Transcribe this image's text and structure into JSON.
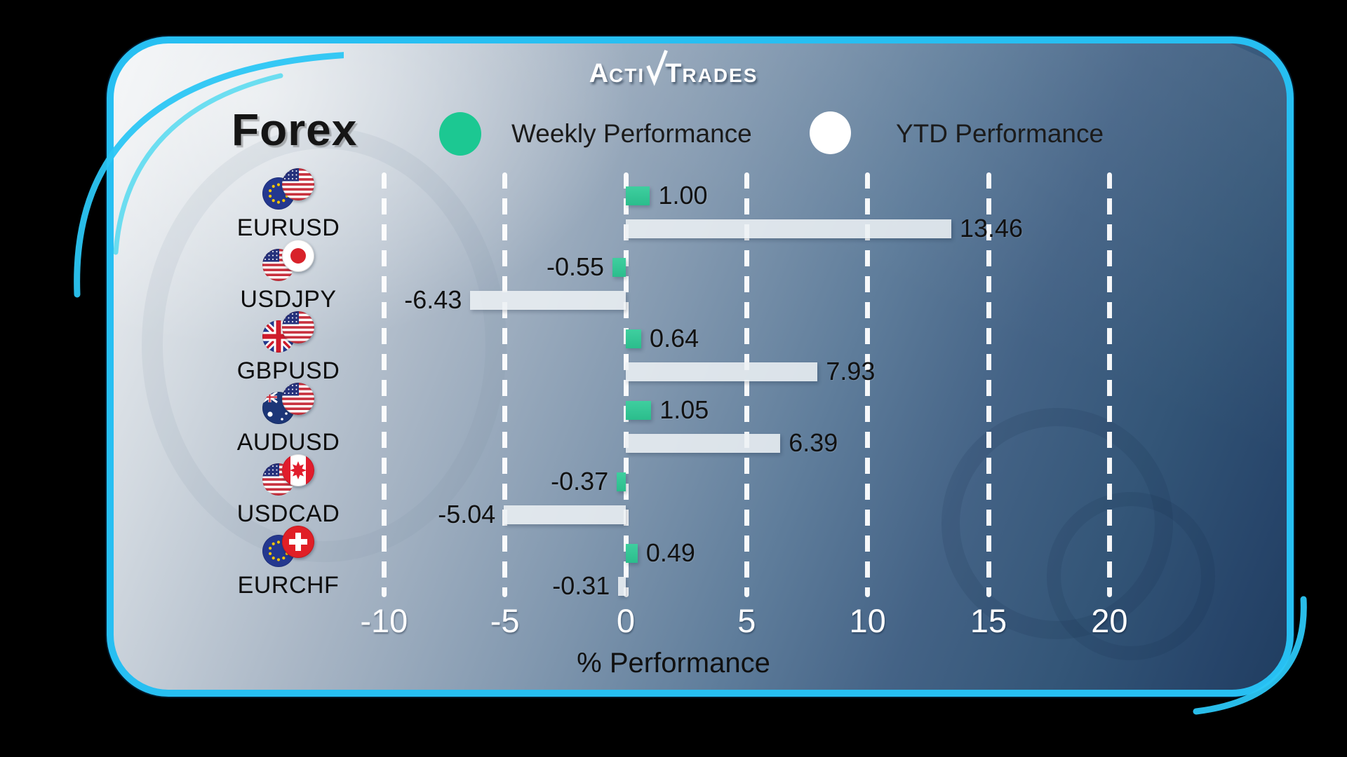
{
  "brand": {
    "name": "ActivTrades",
    "part1": "A",
    "part1_small": "CTI",
    "part2": "T",
    "part2_small": "RADES"
  },
  "header": {
    "title": "Forex"
  },
  "legend": {
    "weekly": "Weekly Performance",
    "ytd": "YTD Performance"
  },
  "colors": {
    "card_border": "#27bff2",
    "weekly_bar": "#2fc494",
    "ytd_bar": "#ecf0f4",
    "grid": "#ffffff",
    "value_text": "#111111",
    "axis_text": "#ffffff"
  },
  "chart_data": {
    "type": "bar",
    "orientation": "horizontal",
    "title": "Forex",
    "categories": [
      "EURUSD",
      "USDJPY",
      "GBPUSD",
      "AUDUSD",
      "USDCAD",
      "EURCHF"
    ],
    "flag_pairs": [
      [
        "eu",
        "us"
      ],
      [
        "us",
        "jp"
      ],
      [
        "gb",
        "us"
      ],
      [
        "au",
        "us"
      ],
      [
        "us",
        "ca"
      ],
      [
        "eu",
        "ch"
      ]
    ],
    "series": [
      {
        "name": "Weekly Performance",
        "color": "#2fc494",
        "values": [
          1.0,
          -0.55,
          0.64,
          1.05,
          -0.37,
          0.49
        ]
      },
      {
        "name": "YTD Performance",
        "color": "#ecf0f4",
        "values": [
          13.46,
          -6.43,
          7.93,
          6.39,
          -5.04,
          -0.31
        ]
      }
    ],
    "x_ticks": [
      -10,
      -5,
      0,
      5,
      10,
      15,
      20
    ],
    "xlim": [
      -12,
      22
    ],
    "xlabel": "% Performance",
    "grid": "dashed-vertical-white",
    "legend_position": "top"
  }
}
